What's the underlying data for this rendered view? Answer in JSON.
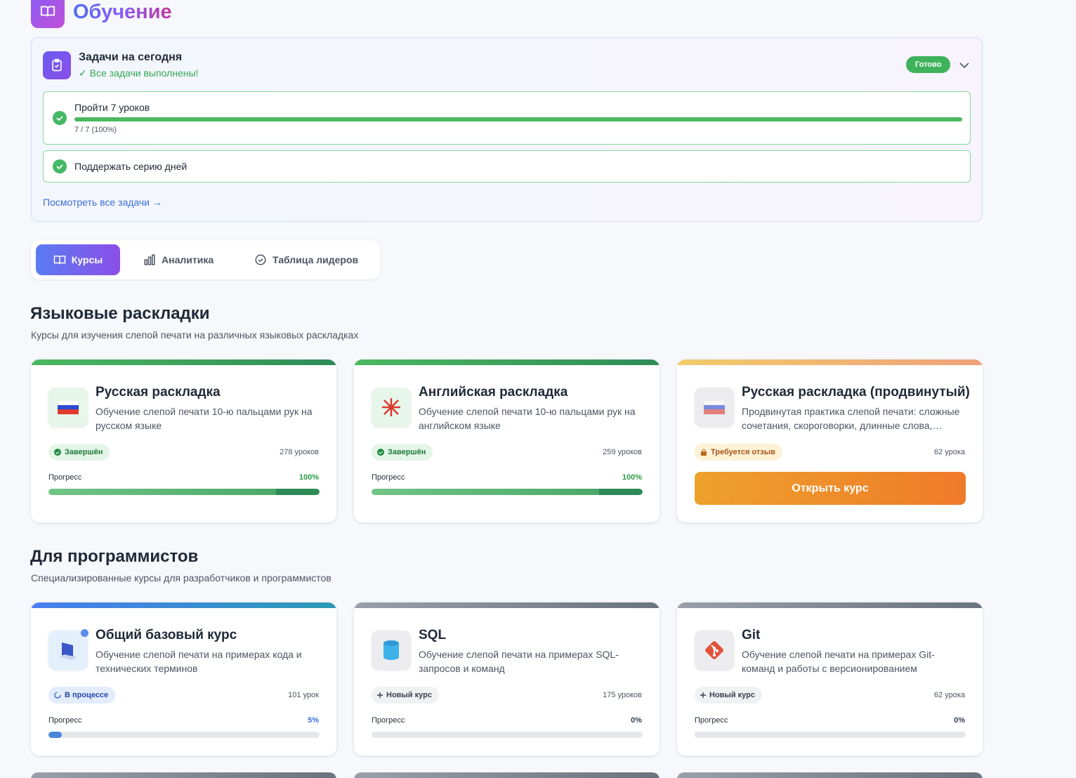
{
  "header": {
    "title": "Обучение"
  },
  "tasks": {
    "title": "Задачи на сегодня",
    "status": "✓ Все задачи выполнены!",
    "badge": "Готово",
    "items": [
      {
        "label": "Пройти 7 уроков",
        "progress": {
          "value": 100,
          "label": "7 / 7 (100%)"
        }
      },
      {
        "label": "Поддержать серию дней"
      }
    ],
    "link": "Посмотреть все задачи →"
  },
  "tabs": [
    "Курсы",
    "Аналитика",
    "Таблица лидеров"
  ],
  "sections": [
    {
      "title": "Языковые раскладки",
      "subtitle": "Курсы для изучения слепой печати на различных языковых раскладках",
      "courses": [
        {
          "title": "Русская раскладка",
          "description": "Обучение слепой печати 10-ю пальцами рук на русском языке",
          "badge": "Завершён",
          "lessons": "278 уроков",
          "progress_label": "Прогресс",
          "progress": {
            "value": 100,
            "label": "100%"
          }
        },
        {
          "title": "Английская раскладка",
          "description": "Обучение слепой печати 10-ю пальцами рук на английском языке",
          "badge": "Завершён",
          "lessons": "259 уроков",
          "progress_label": "Прогресс",
          "progress": {
            "value": 100,
            "label": "100%"
          }
        },
        {
          "title": "Русская раскладка (продвинутый)",
          "description": "Продвинутая практика слепой печати: сложные сочетания, скороговорки, длинные слова,…",
          "badge": "Требуется отзыв",
          "lessons": "62 урока",
          "button": "Открыть курс"
        }
      ]
    },
    {
      "title": "Для программистов",
      "subtitle": "Специализированные курсы для разработчиков и программистов",
      "courses": [
        {
          "title": "Общий базовый курс",
          "description": "Обучение слепой печати на примерах кода и технических терминов",
          "badge": "В процессе",
          "lessons": "101 урок",
          "progress_label": "Прогресс",
          "progress": {
            "value": 5,
            "label": "5%"
          }
        },
        {
          "title": "SQL",
          "description": "Обучение слепой печати на примерах SQL-запросов и команд",
          "badge": "Новый курс",
          "lessons": "175 уроков",
          "progress_label": "Прогресс",
          "progress": {
            "value": 0,
            "label": "0%"
          }
        },
        {
          "title": "Git",
          "description": "Обучение слепой печати на примерах Git-команд и работы с версионированием",
          "badge": "Новый курс",
          "lessons": "62 урока",
          "progress_label": "Прогресс",
          "progress": {
            "value": 0,
            "label": "0%"
          }
        }
      ]
    }
  ]
}
